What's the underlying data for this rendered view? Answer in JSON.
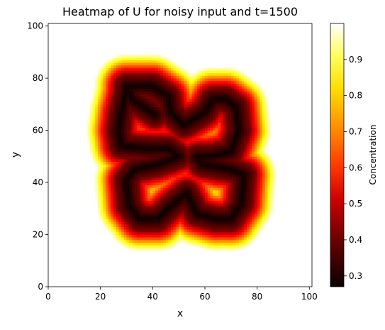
{
  "chart_data": {
    "type": "heatmap",
    "title": "Heatmap of U for noisy input and t=1500",
    "xlabel": "x",
    "ylabel": "y",
    "xlim": [
      0,
      101
    ],
    "ylim": [
      0,
      101
    ],
    "xticks": [
      0,
      20,
      40,
      60,
      80,
      100
    ],
    "yticks": [
      0,
      20,
      40,
      60,
      80,
      100
    ],
    "colorbar": {
      "label": "Concentration",
      "range": [
        0.27,
        1.0
      ],
      "ticks": [
        0.3,
        0.4,
        0.5,
        0.6,
        0.7,
        0.8,
        0.9
      ],
      "colormap": "hot"
    },
    "grid_size": [
      101,
      101
    ],
    "background_value": 1.0,
    "pattern": {
      "description_units": "grid cells",
      "paths": [
        [
          [
            41,
            66
          ],
          [
            32,
            72
          ],
          [
            30,
            77
          ],
          [
            36,
            77
          ],
          [
            40,
            77
          ],
          [
            46,
            73
          ],
          [
            47,
            67
          ],
          [
            52,
            62
          ],
          [
            60,
            67
          ],
          [
            63,
            72
          ],
          [
            68,
            72
          ],
          [
            72,
            69
          ],
          [
            73,
            60
          ],
          [
            70,
            52
          ],
          [
            62,
            50
          ],
          [
            57,
            50
          ],
          [
            59,
            47
          ],
          [
            70,
            45
          ],
          [
            75,
            43
          ],
          [
            74,
            32
          ],
          [
            70,
            26
          ],
          [
            64,
            26
          ],
          [
            57,
            28
          ],
          [
            53,
            36
          ],
          [
            47,
            31
          ],
          [
            42,
            26
          ],
          [
            35,
            26
          ],
          [
            31,
            31
          ],
          [
            30,
            41
          ],
          [
            33,
            45
          ],
          [
            42,
            47
          ],
          [
            50,
            50
          ],
          [
            46,
            53
          ],
          [
            38,
            53
          ],
          [
            28,
            54
          ],
          [
            27,
            60
          ],
          [
            28,
            67
          ],
          [
            30,
            75
          ]
        ]
      ],
      "tube_radius": 4.5,
      "core_value": 0.27,
      "halo_width": 8
    }
  }
}
